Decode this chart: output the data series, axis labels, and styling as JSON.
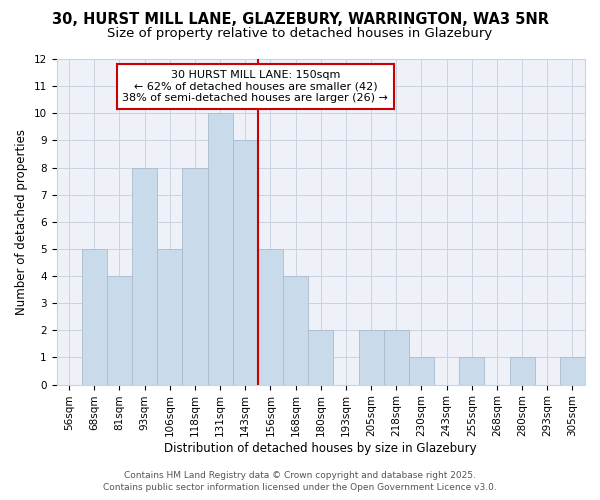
{
  "title_line1": "30, HURST MILL LANE, GLAZEBURY, WARRINGTON, WA3 5NR",
  "title_line2": "Size of property relative to detached houses in Glazebury",
  "xlabel": "Distribution of detached houses by size in Glazebury",
  "ylabel": "Number of detached properties",
  "categories": [
    "56sqm",
    "68sqm",
    "81sqm",
    "93sqm",
    "106sqm",
    "118sqm",
    "131sqm",
    "143sqm",
    "156sqm",
    "168sqm",
    "180sqm",
    "193sqm",
    "205sqm",
    "218sqm",
    "230sqm",
    "243sqm",
    "255sqm",
    "268sqm",
    "280sqm",
    "293sqm",
    "305sqm"
  ],
  "values": [
    0,
    5,
    4,
    8,
    5,
    8,
    10,
    9,
    5,
    4,
    2,
    0,
    2,
    2,
    1,
    0,
    1,
    0,
    1,
    0,
    1
  ],
  "bar_color": "#c9daea",
  "bar_edgecolor": "#aabbcc",
  "vline_color": "#cc0000",
  "annotation_line1": "30 HURST MILL LANE: 150sqm",
  "annotation_line2": "← 62% of detached houses are smaller (42)",
  "annotation_line3": "38% of semi-detached houses are larger (26) →",
  "annotation_box_color": "#cc0000",
  "ylim": [
    0,
    12
  ],
  "yticks": [
    0,
    1,
    2,
    3,
    4,
    5,
    6,
    7,
    8,
    9,
    10,
    11,
    12
  ],
  "grid_color": "#c8d4e0",
  "background_color": "#ffffff",
  "plot_bg_color": "#eef2f8",
  "footer_line1": "Contains HM Land Registry data © Crown copyright and database right 2025.",
  "footer_line2": "Contains public sector information licensed under the Open Government Licence v3.0.",
  "title_fontsize": 10.5,
  "subtitle_fontsize": 9.5,
  "axis_label_fontsize": 8.5,
  "tick_fontsize": 7.5,
  "annotation_fontsize": 8,
  "footer_fontsize": 6.5
}
